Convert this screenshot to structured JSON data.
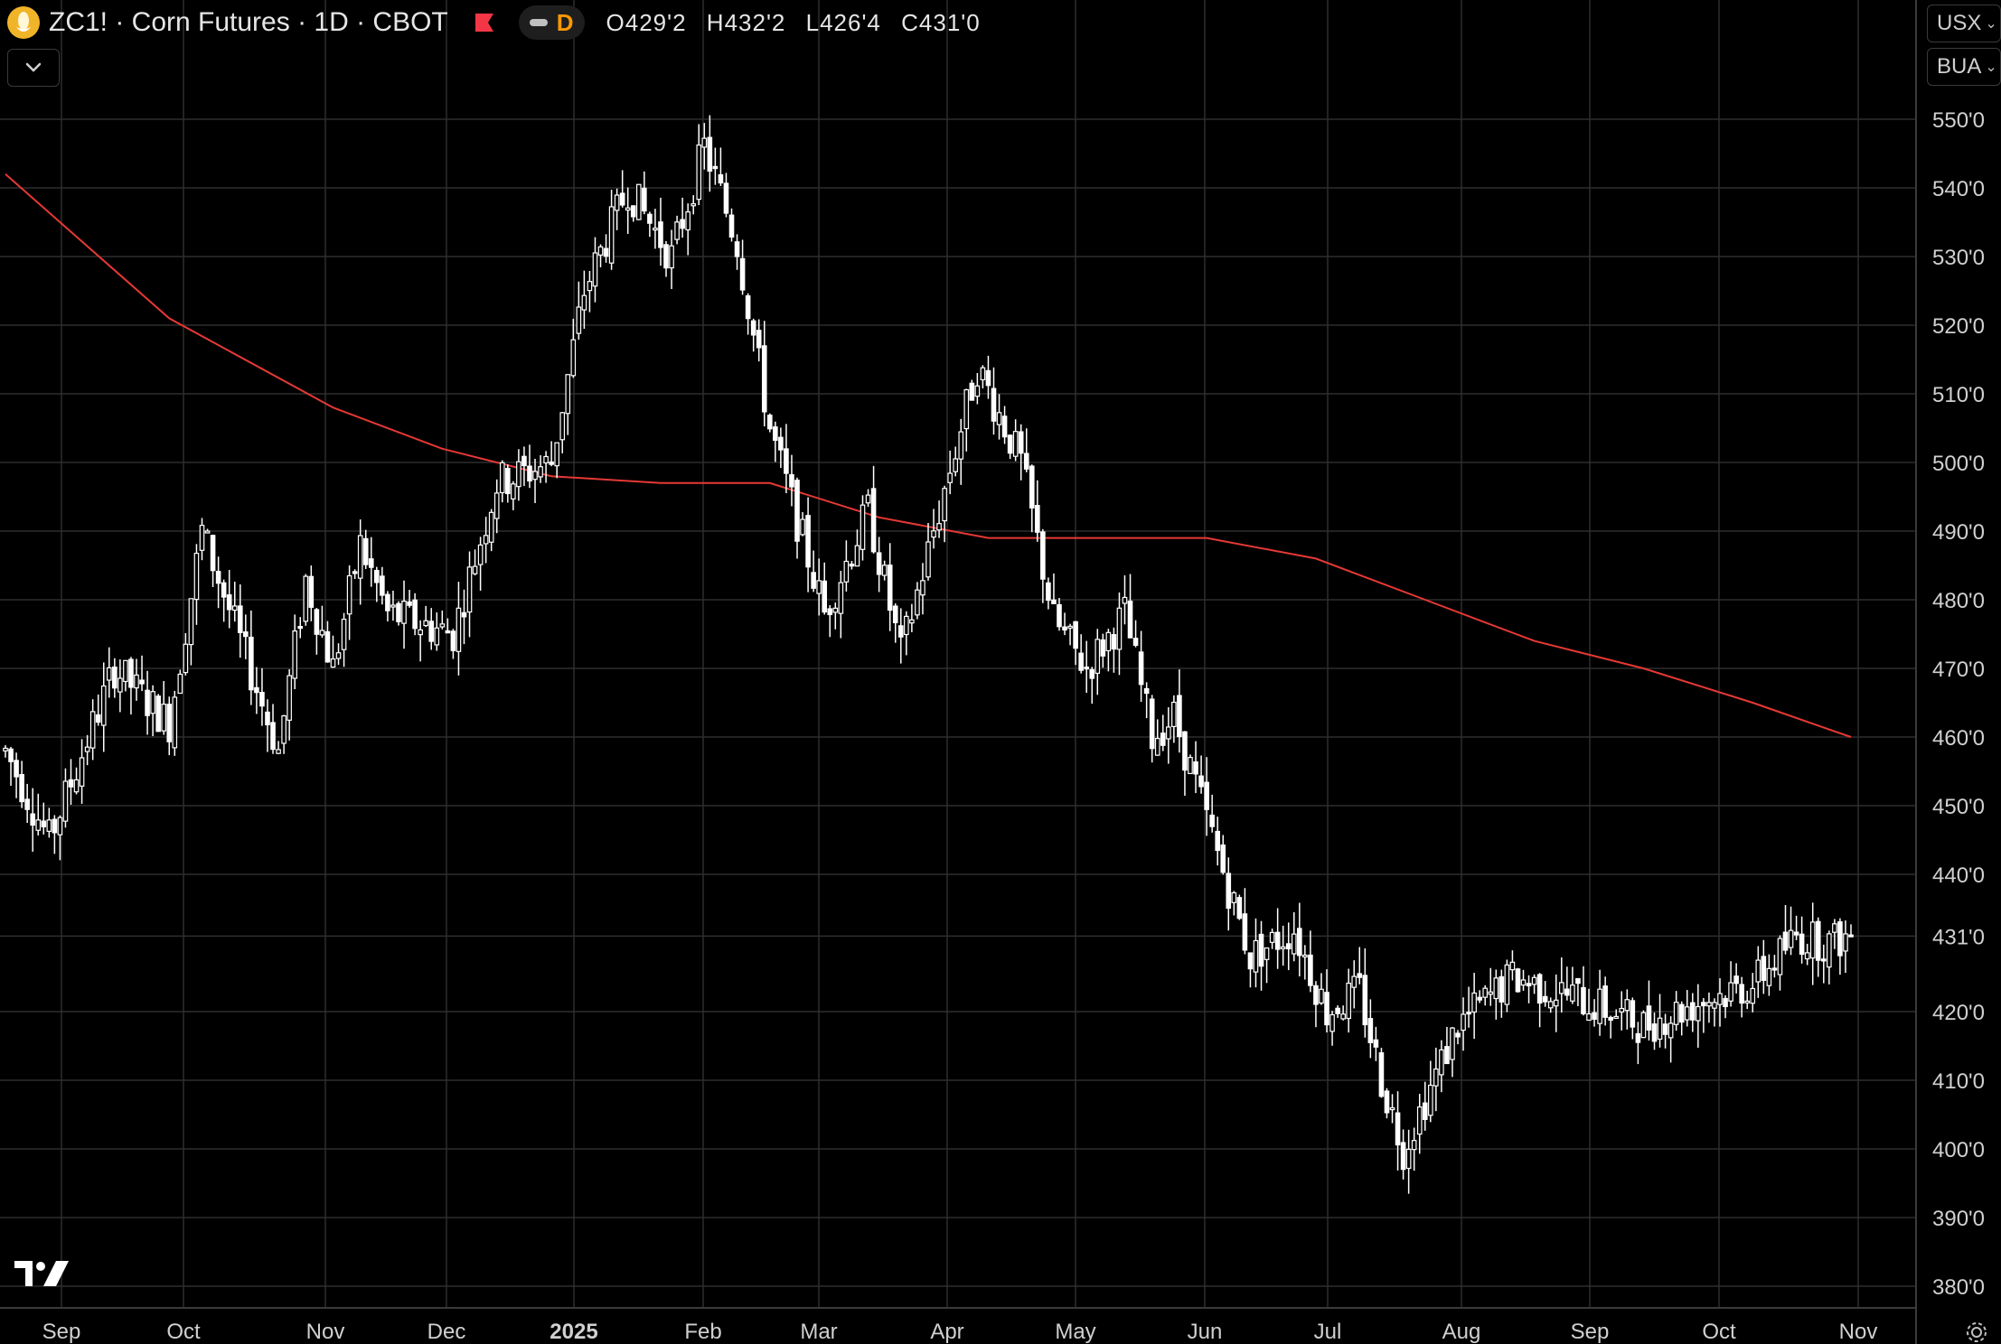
{
  "header": {
    "title": "ZC1! · Corn Futures · 1D · CBOT",
    "interval_badge": "D",
    "ohlc": {
      "open": "O429'2",
      "high": "H432'2",
      "low": "L426'4",
      "close": "C431'0"
    },
    "icons": [
      "corn-symbol-icon",
      "flag-icon",
      "dash-icon",
      "chevron-down-icon"
    ]
  },
  "units": {
    "currency": "USX",
    "quantity": "BUA"
  },
  "colors": {
    "background": "#000000",
    "grid": "#2e2e2e",
    "candle": "#ffffff",
    "moving_average": "#e53935",
    "badge": "#ff9800",
    "flag": "#f23645"
  },
  "chart_data": {
    "type": "candlestick",
    "ylim": [
      378,
      556
    ],
    "y_ticks": [
      380,
      390,
      400,
      410,
      420,
      431,
      440,
      450,
      460,
      470,
      480,
      490,
      500,
      510,
      520,
      530,
      540,
      550
    ],
    "y_tick_labels": [
      "380'0",
      "390'0",
      "400'0",
      "410'0",
      "420'0",
      "431'0",
      "440'0",
      "450'0",
      "460'0",
      "470'0",
      "480'0",
      "490'0",
      "500'0",
      "510'0",
      "520'0",
      "530'0",
      "540'0",
      "550'0"
    ],
    "x_labels": [
      "Sep",
      "Oct",
      "Nov",
      "Dec",
      "2025",
      "Feb",
      "Mar",
      "Apr",
      "May",
      "Jun",
      "Jul",
      "Aug",
      "Sep",
      "Oct",
      "Nov"
    ],
    "price_anchors_day": [
      0,
      8,
      20,
      30,
      36,
      50,
      55,
      60,
      65,
      70,
      82,
      90,
      100,
      106,
      114,
      122,
      128,
      134,
      140,
      150,
      158,
      164,
      170,
      178,
      186,
      192,
      198,
      205,
      210,
      214,
      220,
      228,
      236,
      242,
      248,
      252,
      256,
      266,
      276,
      288,
      300,
      312,
      320,
      328,
      334,
      338
    ],
    "price_anchors_value": [
      458,
      445,
      470,
      462,
      490,
      458,
      483,
      470,
      488,
      478,
      475,
      497,
      500,
      525,
      540,
      530,
      546,
      532,
      505,
      478,
      493,
      472,
      490,
      514,
      500,
      477,
      470,
      478,
      460,
      463,
      448,
      428,
      432,
      420,
      423,
      410,
      400,
      418,
      425,
      422,
      418,
      422,
      424,
      431,
      430,
      431
    ],
    "last_close": 431,
    "series": [
      {
        "name": "",
        "kind": "moving_average",
        "x_day": [
          0,
          30,
          60,
          80,
          100,
          120,
          140,
          160,
          180,
          200,
          220,
          240,
          260,
          280,
          300,
          320,
          338
        ],
        "values": [
          542,
          521,
          508,
          502,
          498,
          497,
          497,
          492,
          489,
          489,
          489,
          486,
          480,
          474,
          470,
          465,
          460
        ]
      }
    ],
    "grid": true
  }
}
